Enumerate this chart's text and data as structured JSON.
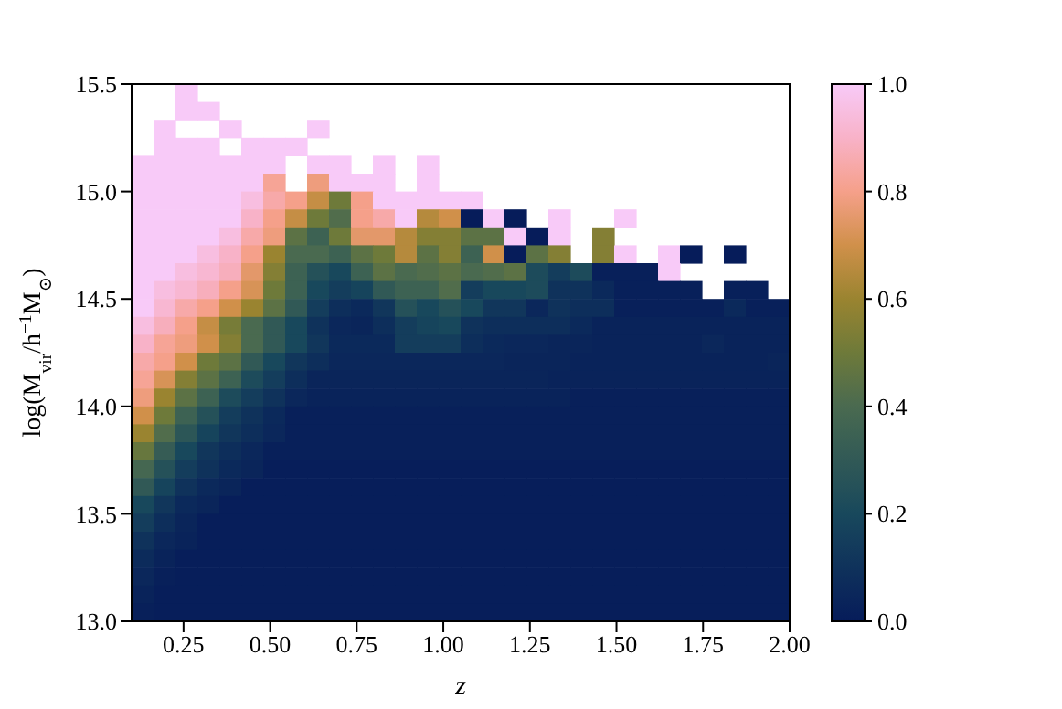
{
  "chart_data": {
    "type": "heatmap",
    "xlabel": "z",
    "ylabel": "log(M$_{vir}$/h$^{−1}$M$_{⊙}$)",
    "xlim": [
      0.1,
      2.0
    ],
    "ylim": [
      13.0,
      15.5
    ],
    "xticks": [
      0.25,
      {
        "value": 0.5,
        "label": "0.50"
      },
      0.75,
      {
        "value": 1.0,
        "label": "1.00"
      },
      1.25,
      {
        "value": 1.5,
        "label": "1.50"
      },
      1.75,
      {
        "value": 2.0,
        "label": "2.00"
      }
    ],
    "yticks": [
      {
        "value": 13.0,
        "label": "13.0"
      },
      13.5,
      {
        "value": 14.0,
        "label": "14.0"
      },
      14.5,
      {
        "value": 15.0,
        "label": "15.0"
      },
      15.5
    ],
    "clim": [
      0,
      1
    ],
    "cticks": [
      {
        "value": 0,
        "label": "0.0"
      },
      0.2,
      0.4,
      0.6,
      0.8,
      {
        "value": 1,
        "label": "1.0"
      }
    ],
    "cells": [
      [
        null,
        null,
        1,
        null,
        null,
        null,
        null,
        null,
        null,
        null,
        null,
        null,
        null,
        null,
        null,
        null,
        null,
        null,
        null,
        null,
        null,
        null,
        null,
        null,
        null,
        null,
        null,
        null,
        null,
        null
      ],
      [
        null,
        null,
        1,
        1,
        null,
        null,
        null,
        null,
        null,
        null,
        null,
        null,
        null,
        null,
        null,
        null,
        null,
        null,
        null,
        null,
        null,
        null,
        null,
        null,
        null,
        null,
        null,
        null,
        null,
        null
      ],
      [
        null,
        1,
        null,
        null,
        1,
        null,
        null,
        null,
        1,
        null,
        null,
        null,
        null,
        null,
        null,
        null,
        null,
        null,
        null,
        null,
        null,
        null,
        null,
        null,
        null,
        null,
        null,
        null,
        null,
        null
      ],
      [
        null,
        1,
        1,
        1,
        null,
        1,
        1,
        1,
        null,
        null,
        null,
        null,
        null,
        null,
        null,
        null,
        null,
        null,
        null,
        null,
        null,
        null,
        null,
        null,
        null,
        null,
        null,
        null,
        null,
        null
      ],
      [
        1,
        1,
        1,
        1,
        1,
        1,
        1,
        null,
        1,
        1,
        null,
        1,
        null,
        1,
        null,
        null,
        null,
        null,
        null,
        null,
        null,
        null,
        null,
        null,
        null,
        null,
        null,
        null,
        null,
        null
      ],
      [
        1,
        1,
        1,
        1,
        1,
        1,
        0.82,
        null,
        0.78,
        1,
        1,
        1,
        null,
        1,
        null,
        null,
        null,
        null,
        null,
        null,
        null,
        null,
        null,
        null,
        null,
        null,
        null,
        null,
        null,
        null
      ],
      [
        1,
        1,
        1,
        1,
        1,
        0.95,
        0.85,
        0.8,
        0.68,
        0.5,
        0.8,
        1,
        1,
        1,
        1,
        1,
        null,
        null,
        null,
        null,
        null,
        null,
        null,
        null,
        null,
        null,
        null,
        null,
        null,
        null
      ],
      [
        1,
        1,
        1,
        1,
        1,
        0.9,
        0.8,
        0.68,
        0.5,
        0.42,
        0.8,
        0.85,
        1,
        0.65,
        0.7,
        0.0,
        1,
        0.0,
        null,
        1,
        null,
        null,
        1,
        null,
        null,
        null,
        null,
        null,
        null,
        null
      ],
      [
        1,
        1,
        1,
        1,
        0.95,
        0.85,
        0.78,
        0.45,
        0.35,
        0.5,
        0.75,
        0.75,
        0.65,
        0.55,
        0.55,
        0.45,
        0.45,
        1,
        0.0,
        1,
        null,
        0.55,
        null,
        null,
        null,
        null,
        null,
        null,
        null,
        null
      ],
      [
        1,
        1,
        1,
        0.95,
        0.9,
        0.8,
        0.6,
        0.4,
        0.4,
        0.35,
        0.45,
        0.5,
        0.65,
        0.45,
        0.55,
        0.35,
        0.7,
        0.0,
        0.45,
        0.55,
        null,
        0.55,
        1,
        null,
        1,
        0.0,
        null,
        0.0,
        null,
        null
      ],
      [
        1,
        1,
        0.95,
        0.92,
        0.88,
        0.75,
        0.55,
        0.35,
        0.25,
        0.2,
        0.35,
        0.45,
        0.4,
        0.42,
        0.45,
        0.4,
        0.42,
        0.45,
        0.22,
        0.15,
        0.22,
        0.02,
        0.02,
        0.02,
        1,
        null,
        null,
        null,
        null,
        null
      ],
      [
        1,
        0.95,
        0.92,
        0.88,
        0.8,
        0.72,
        0.5,
        0.35,
        0.2,
        0.15,
        0.18,
        0.3,
        0.35,
        0.35,
        0.42,
        0.15,
        0.2,
        0.2,
        0.22,
        0.1,
        0.1,
        0.06,
        0.02,
        0.02,
        0.02,
        0.02,
        null,
        0.02,
        0.02,
        null
      ],
      [
        1,
        0.92,
        0.85,
        0.8,
        0.7,
        0.6,
        0.45,
        0.3,
        0.15,
        0.08,
        0.06,
        0.12,
        0.25,
        0.2,
        0.25,
        0.2,
        0.12,
        0.12,
        0.05,
        0.1,
        0.08,
        0.08,
        0.02,
        0.02,
        0.02,
        0.02,
        0.02,
        0.06,
        0.02,
        0.02
      ],
      [
        0.95,
        0.88,
        0.8,
        0.68,
        0.52,
        0.4,
        0.3,
        0.2,
        0.1,
        0.05,
        0.04,
        0.08,
        0.15,
        0.18,
        0.2,
        0.1,
        0.08,
        0.08,
        0.08,
        0.08,
        0.06,
        0.03,
        0.03,
        0.03,
        0.03,
        0.03,
        0.03,
        0.03,
        0.03,
        0.03
      ],
      [
        0.9,
        0.82,
        0.78,
        0.7,
        0.55,
        0.4,
        0.3,
        0.2,
        0.12,
        0.06,
        0.06,
        0.06,
        0.15,
        0.15,
        0.15,
        0.08,
        0.06,
        0.05,
        0.05,
        0.04,
        0.04,
        0.03,
        0.03,
        0.03,
        0.03,
        0.03,
        0.05,
        0.03,
        0.03,
        0.03
      ],
      [
        0.85,
        0.8,
        0.7,
        0.5,
        0.45,
        0.3,
        0.2,
        0.12,
        0.08,
        0.05,
        0.05,
        0.05,
        0.05,
        0.05,
        0.05,
        0.05,
        0.05,
        0.04,
        0.04,
        0.04,
        0.03,
        0.03,
        0.03,
        0.03,
        0.03,
        0.03,
        0.03,
        0.03,
        0.03,
        0.04
      ],
      [
        0.82,
        0.72,
        0.55,
        0.45,
        0.35,
        0.22,
        0.15,
        0.08,
        0.04,
        0.04,
        0.04,
        0.04,
        0.04,
        0.04,
        0.04,
        0.04,
        0.04,
        0.04,
        0.04,
        0.03,
        0.03,
        0.03,
        0.03,
        0.03,
        0.03,
        0.03,
        0.03,
        0.03,
        0.03,
        0.03
      ],
      [
        0.78,
        0.6,
        0.45,
        0.35,
        0.22,
        0.15,
        0.1,
        0.05,
        0.03,
        0.03,
        0.03,
        0.03,
        0.03,
        0.03,
        0.03,
        0.03,
        0.03,
        0.03,
        0.03,
        0.03,
        0.02,
        0.02,
        0.02,
        0.02,
        0.02,
        0.02,
        0.02,
        0.02,
        0.02,
        0.02
      ],
      [
        0.7,
        0.5,
        0.35,
        0.25,
        0.15,
        0.1,
        0.06,
        0.02,
        0.02,
        0.02,
        0.02,
        0.02,
        0.02,
        0.02,
        0.02,
        0.02,
        0.02,
        0.02,
        0.02,
        0.02,
        0.02,
        0.02,
        0.02,
        0.02,
        0.02,
        0.02,
        0.02,
        0.02,
        0.02,
        0.02
      ],
      [
        0.6,
        0.42,
        0.28,
        0.18,
        0.12,
        0.08,
        0.05,
        0.02,
        0.02,
        0.02,
        0.02,
        0.02,
        0.02,
        0.02,
        0.02,
        0.02,
        0.02,
        0.02,
        0.02,
        0.02,
        0.02,
        0.02,
        0.02,
        0.02,
        0.02,
        0.02,
        0.02,
        0.02,
        0.02,
        0.02
      ],
      [
        0.48,
        0.32,
        0.2,
        0.12,
        0.08,
        0.05,
        0.02,
        0.02,
        0.02,
        0.02,
        0.02,
        0.02,
        0.02,
        0.02,
        0.02,
        0.02,
        0.02,
        0.02,
        0.02,
        0.02,
        0.02,
        0.02,
        0.02,
        0.02,
        0.02,
        0.02,
        0.02,
        0.02,
        0.02,
        0.02
      ],
      [
        0.38,
        0.25,
        0.15,
        0.1,
        0.06,
        0.04,
        0.01,
        0.01,
        0.01,
        0.01,
        0.01,
        0.01,
        0.01,
        0.01,
        0.01,
        0.01,
        0.01,
        0.01,
        0.01,
        0.01,
        0.01,
        0.01,
        0.01,
        0.01,
        0.01,
        0.01,
        0.01,
        0.01,
        0.01,
        0.01
      ],
      [
        0.3,
        0.18,
        0.1,
        0.06,
        0.04,
        0.01,
        0.01,
        0.01,
        0.01,
        0.01,
        0.01,
        0.01,
        0.01,
        0.01,
        0.01,
        0.01,
        0.01,
        0.01,
        0.01,
        0.01,
        0.01,
        0.01,
        0.01,
        0.01,
        0.01,
        0.01,
        0.01,
        0.01,
        0.01,
        0.01
      ],
      [
        0.2,
        0.12,
        0.06,
        0.04,
        0.01,
        0.01,
        0.01,
        0.01,
        0.01,
        0.01,
        0.01,
        0.01,
        0.01,
        0.01,
        0.01,
        0.01,
        0.01,
        0.01,
        0.01,
        0.01,
        0.01,
        0.01,
        0.01,
        0.01,
        0.01,
        0.01,
        0.01,
        0.01,
        0.01,
        0.01
      ],
      [
        0.15,
        0.08,
        0.04,
        0.01,
        0.01,
        0.01,
        0.01,
        0.01,
        0.01,
        0.01,
        0.01,
        0.01,
        0.01,
        0.01,
        0.01,
        0.01,
        0.01,
        0.01,
        0.01,
        0.01,
        0.01,
        0.01,
        0.01,
        0.01,
        0.01,
        0.01,
        0.01,
        0.01,
        0.01,
        0.01
      ],
      [
        0.1,
        0.05,
        0.03,
        0.01,
        0.01,
        0.01,
        0.01,
        0.01,
        0.01,
        0.01,
        0.01,
        0.01,
        0.01,
        0.01,
        0.01,
        0.01,
        0.01,
        0.01,
        0.01,
        0.01,
        0.01,
        0.01,
        0.01,
        0.01,
        0.01,
        0.01,
        0.01,
        0.01,
        0.01,
        0.01
      ],
      [
        0.07,
        0.03,
        0.01,
        0.01,
        0.01,
        0.01,
        0.01,
        0.01,
        0.01,
        0.01,
        0.01,
        0.01,
        0.01,
        0.01,
        0.01,
        0.01,
        0.01,
        0.01,
        0.01,
        0.01,
        0.01,
        0.01,
        0.01,
        0.01,
        0.01,
        0.01,
        0.01,
        0.01,
        0.01,
        0.01
      ],
      [
        0.05,
        0.02,
        0.01,
        0.01,
        0.01,
        0.01,
        0.01,
        0.01,
        0.01,
        0.01,
        0.01,
        0.01,
        0.01,
        0.01,
        0.01,
        0.01,
        0.01,
        0.01,
        0.01,
        0.01,
        0.01,
        0.01,
        0.01,
        0.01,
        0.01,
        0.01,
        0.01,
        0.01,
        0.01,
        0.01
      ],
      [
        0.03,
        0.01,
        0.01,
        0.01,
        0.01,
        0.01,
        0.01,
        0.01,
        0.01,
        0.01,
        0.01,
        0.01,
        0.01,
        0.01,
        0.01,
        0.01,
        0.01,
        0.01,
        0.01,
        0.01,
        0.01,
        0.01,
        0.01,
        0.01,
        0.01,
        0.01,
        0.01,
        0.01,
        0.01,
        0.01
      ],
      [
        0.02,
        0.01,
        0.01,
        0.01,
        0.01,
        0.01,
        0.01,
        0.01,
        0.01,
        0.01,
        0.01,
        0.01,
        0.01,
        0.01,
        0.01,
        0.01,
        0.01,
        0.01,
        0.01,
        0.01,
        0.01,
        0.01,
        0.01,
        0.01,
        0.01,
        0.01,
        0.01,
        0.01,
        0.01,
        0.01
      ]
    ]
  }
}
